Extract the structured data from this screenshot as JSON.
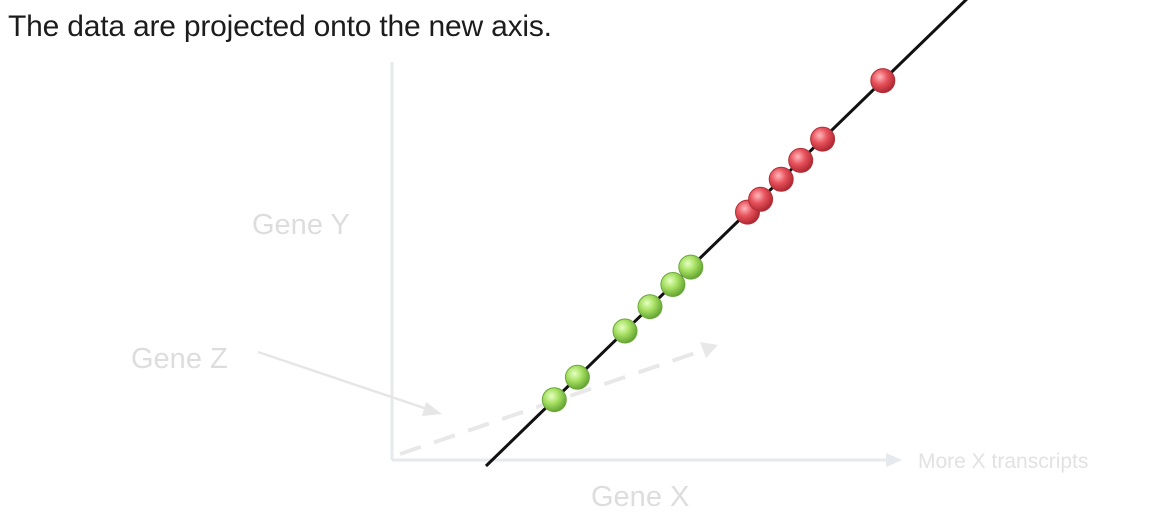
{
  "caption": "The data are projected onto the new axis.",
  "axis_labels": {
    "gene_y": "Gene Y",
    "gene_z": "Gene Z",
    "gene_x": "Gene X",
    "more_x": "More X transcripts"
  },
  "colors": {
    "caption_text": "#1c1c1c",
    "faded_axis": "#e4e7ec",
    "faded_label": "#dcdcdc",
    "projection_line": "#111111",
    "green_point": "#a6e062",
    "red_point": "#e8525c"
  },
  "points": [
    {
      "group": "green",
      "t": 0.1405
    },
    {
      "group": "green",
      "t": 0.188
    },
    {
      "group": "green",
      "t": 0.286
    },
    {
      "group": "green",
      "t": 0.3375
    },
    {
      "group": "green",
      "t": 0.3845
    },
    {
      "group": "green",
      "t": 0.4215
    },
    {
      "group": "red",
      "t": 0.538
    },
    {
      "group": "red",
      "t": 0.565
    },
    {
      "group": "red",
      "t": 0.6075
    },
    {
      "group": "red",
      "t": 0.6475
    },
    {
      "group": "red",
      "t": 0.6925
    },
    {
      "group": "red",
      "t": 0.8165
    }
  ]
}
